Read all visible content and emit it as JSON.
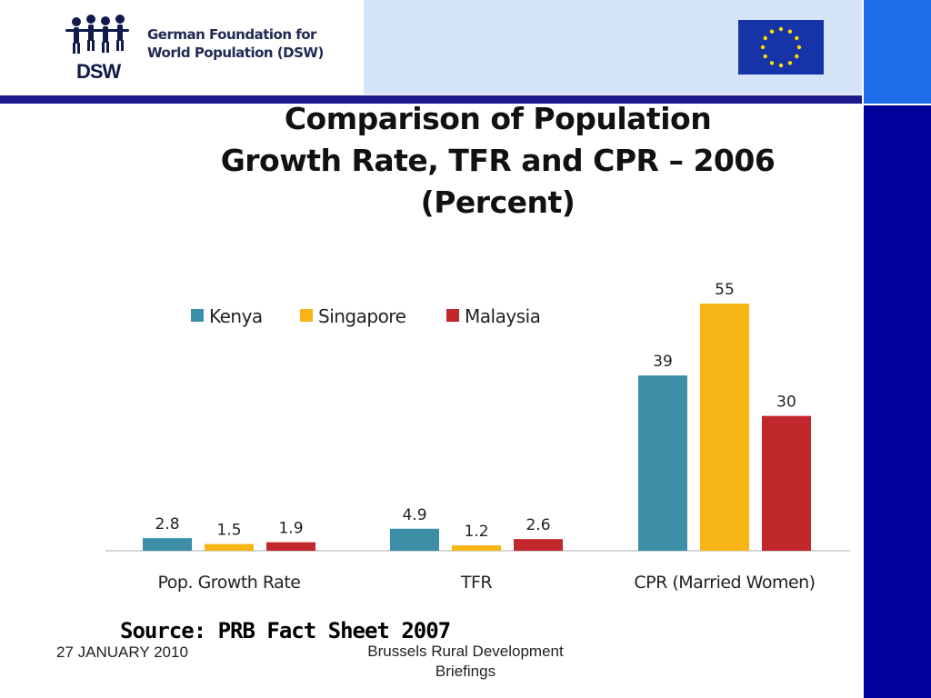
{
  "header": {
    "org_name_line1": "German Foundation for",
    "org_name_line2": "World Population (DSW)",
    "org_abbr": "DSW"
  },
  "title_lines": [
    "Comparison of Population",
    "Growth Rate, TFR and CPR – 2006",
    "(Percent)"
  ],
  "chart_data": {
    "type": "bar",
    "categories": [
      "Pop. Growth Rate",
      "TFR",
      "CPR (Married Women)"
    ],
    "series": [
      {
        "name": "Kenya",
        "values": [
          2.8,
          4.9,
          39
        ]
      },
      {
        "name": "Singapore",
        "values": [
          1.5,
          1.2,
          55
        ]
      },
      {
        "name": "Malaysia",
        "values": [
          1.9,
          2.6,
          30
        ]
      }
    ],
    "data_labels": [
      [
        "2.8",
        "4.9",
        "39"
      ],
      [
        "1.5",
        "1.2",
        "55"
      ],
      [
        "1.9",
        "2.6",
        "30"
      ]
    ],
    "ylim": [
      0,
      55
    ],
    "grid": false,
    "legend_position": "top-left",
    "colors": [
      "#3d8fa8",
      "#f7b516",
      "#c0282c"
    ]
  },
  "source": "Source: PRB Fact Sheet 2007",
  "footer": {
    "date": "27 JANUARY 2010",
    "event_line1": "Brussels Rural Development",
    "event_line2": "Briefings"
  },
  "colors": {
    "header_band": "#d6e4fa",
    "header_rule": "#1a1a8c",
    "side_strip": "#00009a",
    "eu_blue": "#1634a8",
    "eu_star": "#ffdd00"
  }
}
